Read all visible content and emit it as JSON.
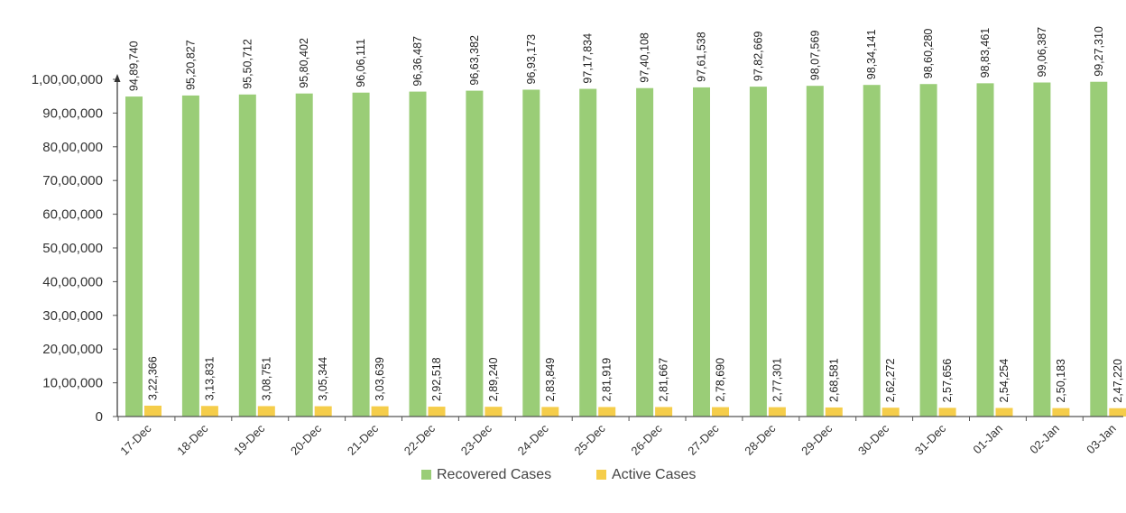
{
  "chart_data": {
    "type": "bar",
    "categories": [
      "17-Dec",
      "18-Dec",
      "19-Dec",
      "20-Dec",
      "21-Dec",
      "22-Dec",
      "23-Dec",
      "24-Dec",
      "25-Dec",
      "26-Dec",
      "27-Dec",
      "28-Dec",
      "29-Dec",
      "30-Dec",
      "31-Dec",
      "01-Jan",
      "02-Jan",
      "03-Jan"
    ],
    "series": [
      {
        "name": "Recovered Cases",
        "color": "#9acd77",
        "values": [
          9489740,
          9520827,
          9550712,
          9580402,
          9606111,
          9636487,
          9663382,
          9693173,
          9717834,
          9740108,
          9761538,
          9782669,
          9807569,
          9834141,
          9860280,
          9883461,
          9906387,
          9927310
        ],
        "labels": [
          "94,89,740",
          "95,20,827",
          "95,50,712",
          "95,80,402",
          "96,06,111",
          "96,36,487",
          "96,63,382",
          "96,93,173",
          "97,17,834",
          "97,40,108",
          "97,61,538",
          "97,82,669",
          "98,07,569",
          "98,34,141",
          "98,60,280",
          "98,83,461",
          "99,06,387",
          "99,27,310"
        ]
      },
      {
        "name": "Active Cases",
        "color": "#f5cd4a",
        "values": [
          322366,
          313831,
          308751,
          305344,
          303639,
          292518,
          289240,
          283849,
          281919,
          281667,
          278690,
          277301,
          268581,
          262272,
          257656,
          254254,
          250183,
          247220
        ],
        "labels": [
          "3,22,366",
          "3,13,831",
          "3,08,751",
          "3,05,344",
          "3,03,639",
          "2,92,518",
          "2,89,240",
          "2,83,849",
          "2,81,919",
          "2,81,667",
          "2,78,690",
          "2,77,301",
          "2,68,581",
          "2,62,272",
          "2,57,656",
          "2,54,254",
          "2,50,183",
          "2,47,220"
        ]
      }
    ],
    "y_ticks": [
      {
        "value": 0,
        "label": "0"
      },
      {
        "value": 1000000,
        "label": "10,00,000"
      },
      {
        "value": 2000000,
        "label": "20,00,000"
      },
      {
        "value": 3000000,
        "label": "30,00,000"
      },
      {
        "value": 4000000,
        "label": "40,00,000"
      },
      {
        "value": 5000000,
        "label": "50,00,000"
      },
      {
        "value": 6000000,
        "label": "60,00,000"
      },
      {
        "value": 7000000,
        "label": "70,00,000"
      },
      {
        "value": 8000000,
        "label": "80,00,000"
      },
      {
        "value": 9000000,
        "label": "90,00,000"
      },
      {
        "value": 10000000,
        "label": "1,00,00,000"
      }
    ],
    "ylim": [
      0,
      10000000
    ],
    "grid": false,
    "legend_position": "bottom-center",
    "title": "",
    "xlabel": "",
    "ylabel": ""
  }
}
